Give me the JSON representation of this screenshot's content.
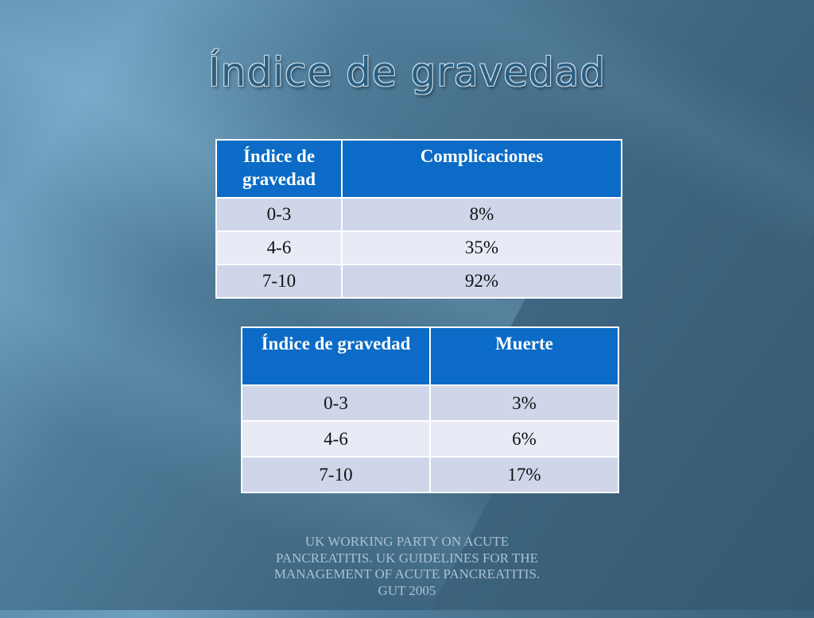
{
  "slide": {
    "title": "Índice de gravedad"
  },
  "table1": {
    "headers": [
      "Índice de gravedad",
      "Complicaciones"
    ],
    "rows": [
      [
        "0-3",
        "8%"
      ],
      [
        "4-6",
        "35%"
      ],
      [
        "7-10",
        "92%"
      ]
    ]
  },
  "table2": {
    "headers": [
      "Índice de gravedad",
      "Muerte"
    ],
    "rows": [
      [
        "0-3",
        "3%"
      ],
      [
        "4-6",
        "6%"
      ],
      [
        "7-10",
        "17%"
      ]
    ]
  },
  "citation": "UK WORKING PARTY ON ACUTE PANCREATITIS. UK GUIDELINES FOR THE MANAGEMENT OF ACUTE PANCREATITIS. GUT 2005",
  "colors": {
    "header_blue": "#0b6bc6",
    "row_dark": "#cfd6ea",
    "row_light": "#e8ebf5"
  }
}
